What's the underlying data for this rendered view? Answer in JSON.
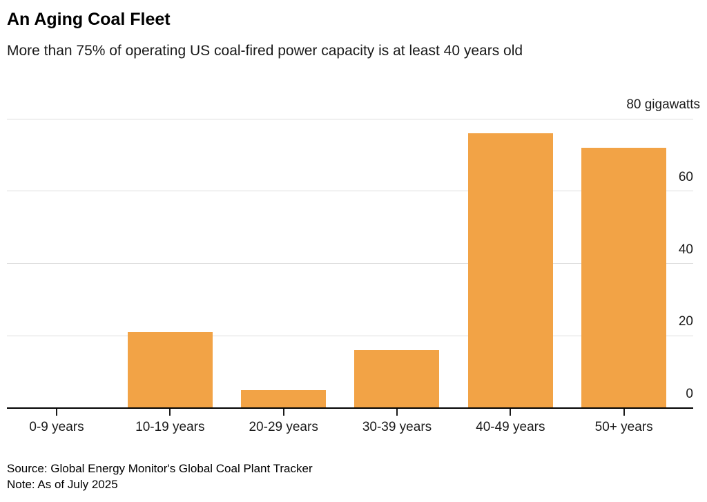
{
  "header": {
    "title": "An Aging Coal Fleet",
    "subtitle": "More than 75% of operating US coal-fired power capacity is at least 40 years old"
  },
  "chart_data": {
    "type": "bar",
    "title": "An Aging Coal Fleet",
    "subtitle": "More than 75% of operating US coal-fired power capacity is at least 40 years old",
    "categories": [
      "0-9 years",
      "10-19 years",
      "20-29 years",
      "30-39 years",
      "40-49 years",
      "50+ years"
    ],
    "values": [
      0,
      21,
      5,
      16,
      76,
      72
    ],
    "unit_label": "80 gigawatts",
    "ylabel": "gigawatts",
    "y_ticks": [
      0,
      20,
      40,
      60
    ],
    "y_gridlines": [
      20,
      40,
      60,
      80
    ],
    "ylim": [
      0,
      80
    ],
    "grid": true,
    "legend_position": "none",
    "bar_color": "#F2A346",
    "gridline_color": "#DCDCDC",
    "axis_color": "#000000"
  },
  "footer": {
    "source": "Source: Global Energy Monitor's Global Coal Plant Tracker",
    "note": "Note: As of July 2025"
  }
}
